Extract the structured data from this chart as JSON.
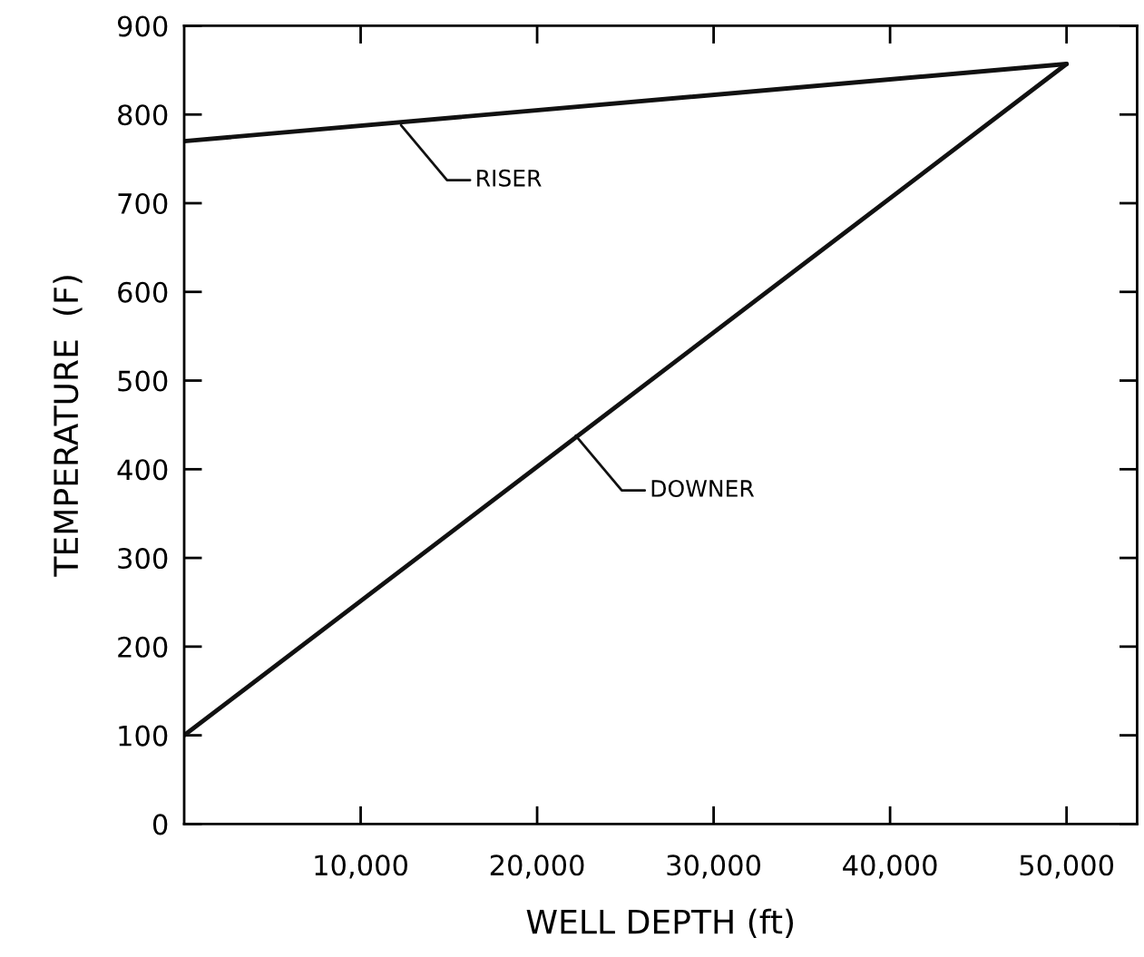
{
  "chart_data": {
    "type": "line",
    "xlabel": "WELL DEPTH (ft)",
    "ylabel": "TEMPERATURE  (F)",
    "x": [
      0,
      50000
    ],
    "series": [
      {
        "color": "#111111",
        "values": [
          770,
          857
        ]
      },
      {
        "color": "#111111",
        "values": [
          100,
          857
        ]
      }
    ],
    "xlim": [
      0,
      54000
    ],
    "ylim": [
      0,
      900
    ],
    "xticks": [
      {
        "value": 10000,
        "label": "10,000"
      },
      {
        "value": 20000,
        "label": "20,000"
      },
      {
        "value": 30000,
        "label": "30,000"
      },
      {
        "value": 40000,
        "label": "40,000"
      },
      {
        "value": 50000,
        "label": "50,000"
      }
    ],
    "yticks": [
      0,
      100,
      200,
      300,
      400,
      500,
      600,
      700,
      800,
      900
    ],
    "annotations": [
      {
        "text": "RISER",
        "x": 12200,
        "y": 790
      },
      {
        "text": "DOWNER",
        "x": 22100,
        "y": 440
      }
    ],
    "grid": false,
    "legend": false,
    "marker": "none",
    "line_style": "solid"
  }
}
